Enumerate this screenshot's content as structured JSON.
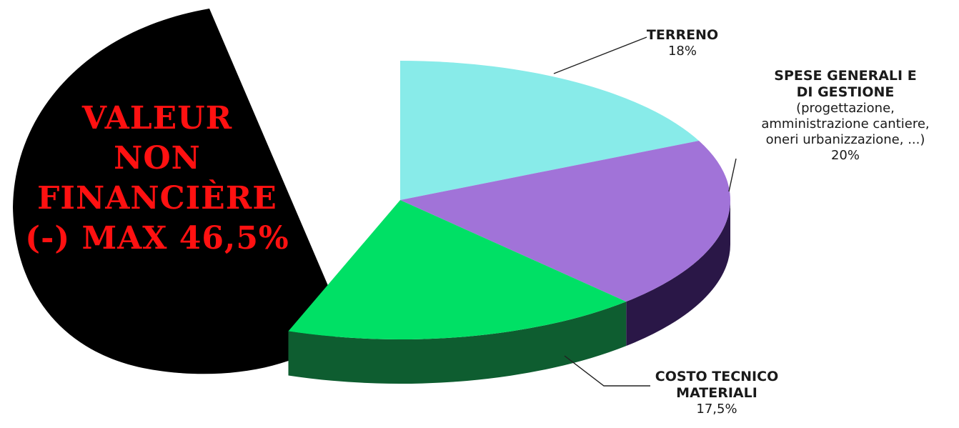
{
  "chart_data": {
    "type": "pie",
    "slices": [
      {
        "label_lines": [
          "TERRENO"
        ],
        "detail_lines": [],
        "value_text": "18%",
        "value": 18,
        "color": "#88ebe9",
        "side_color": "#4fa8a6"
      },
      {
        "label_lines": [
          "SPESE GENERALI E",
          "DI GESTIONE"
        ],
        "detail_lines": [
          "(progettazione,",
          "amministrazione cantiere,",
          "oneri urbanizzazione, ...)"
        ],
        "value_text": "20%",
        "value": 20,
        "color": "#a173d8",
        "side_color": "#2a1747"
      },
      {
        "label_lines": [
          "COSTO TECNICO",
          "MATERIALI"
        ],
        "detail_lines": [],
        "value_text": "17,5%",
        "value": 17.5,
        "color": "#00e065",
        "side_color": "#0e5d30"
      },
      {
        "label_lines": [],
        "detail_lines": [],
        "value_text": "",
        "value": 44.5,
        "color": "#000000",
        "side_color": "#000000"
      }
    ]
  },
  "overlay": {
    "lines": [
      "VALEUR",
      "NON",
      "FINANCIÈRE",
      "(-) MAX 46,5%"
    ],
    "text_color": "#ff1111",
    "background_color": "#000000"
  }
}
